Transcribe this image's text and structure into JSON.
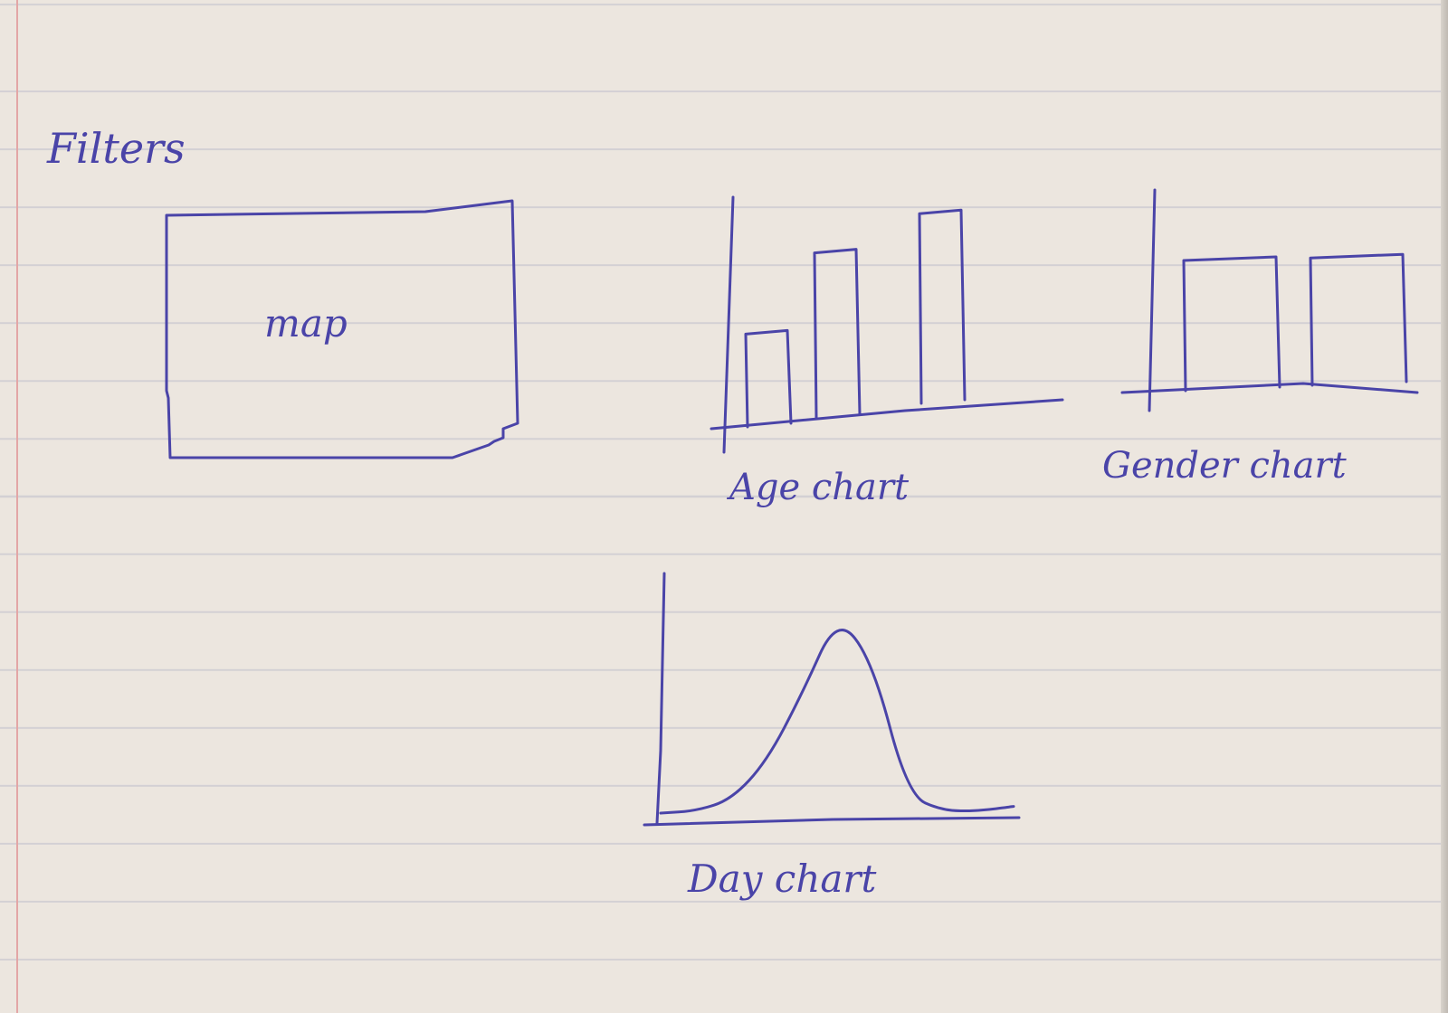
{
  "page": {
    "heading": "Filters"
  },
  "map_panel": {
    "label": "map"
  },
  "age_chart": {
    "caption": "Age chart",
    "chart_data": {
      "type": "bar",
      "categories": [
        "",
        "",
        ""
      ],
      "values": [
        0.45,
        0.8,
        0.92
      ],
      "title": "",
      "xlabel": "",
      "ylabel": ""
    }
  },
  "gender_chart": {
    "caption": "Gender chart",
    "chart_data": {
      "type": "bar",
      "categories": [
        "",
        ""
      ],
      "values": [
        0.9,
        0.88
      ],
      "title": "",
      "xlabel": "",
      "ylabel": ""
    }
  },
  "day_chart": {
    "caption": "Day chart",
    "chart_data": {
      "type": "line",
      "x": [
        0,
        1,
        2,
        3,
        4,
        5,
        6,
        7,
        8,
        9,
        10
      ],
      "values": [
        0.02,
        0.03,
        0.08,
        0.25,
        0.55,
        0.9,
        0.7,
        0.1,
        0.03,
        0.03,
        0.05
      ],
      "title": "",
      "xlabel": "",
      "ylabel": ""
    }
  },
  "colors": {
    "ink": "#4a44a8",
    "paper": "#ece6df",
    "rule": "#d3d0d4",
    "margin": "#e3a6a6"
  }
}
